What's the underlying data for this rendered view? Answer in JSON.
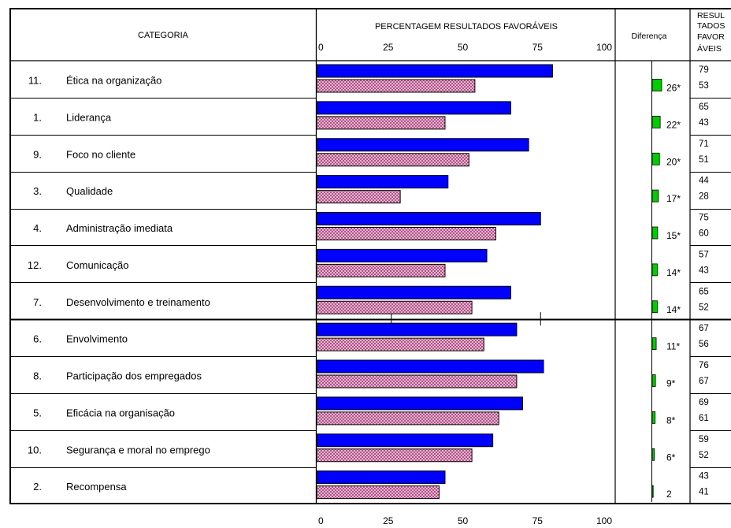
{
  "header": {
    "category": "CATEGORIA",
    "difference": "Diferença",
    "results_lines": [
      "RESUL",
      "TADOS",
      "FAVOR",
      "ÁVEIS"
    ]
  },
  "chart_data": {
    "type": "bar",
    "orientation": "horizontal",
    "title": "PERCENTAGEM RESULTADOS FAVORÁVEIS",
    "xlim": [
      0,
      100
    ],
    "x_ticks": [
      "0",
      "25",
      "50",
      "75",
      "100"
    ],
    "category_numbers": [
      "11.",
      "1.",
      "9.",
      "3.",
      "4.",
      "12.",
      "7.",
      "6.",
      "8.",
      "5.",
      "10.",
      "2."
    ],
    "categories": [
      "Ética na organização",
      "Liderança",
      "Foco no cliente",
      "Qualidade",
      "Administração imediata",
      "Comunicação",
      "Desenvolvimento e treinamento",
      "Envolvimento",
      "Participação dos empregados",
      "Eficácia na organisação",
      "Segurança e moral no emprego",
      "Recompensa"
    ],
    "series": [
      {
        "values": [
          79,
          65,
          71,
          44,
          75,
          57,
          65,
          67,
          76,
          69,
          59,
          43
        ],
        "color": "#0000ff",
        "fill": "solid"
      },
      {
        "values": [
          53,
          43,
          51,
          28,
          60,
          43,
          52,
          56,
          67,
          61,
          52,
          41
        ],
        "color": "#a8407a",
        "fill": "crosshatch"
      }
    ],
    "difference": {
      "values": [
        26,
        22,
        20,
        17,
        15,
        14,
        14,
        11,
        9,
        8,
        6,
        2
      ],
      "labels": [
        "26*",
        "22*",
        "20*",
        "17*",
        "15*",
        "14*",
        "14*",
        "11*",
        "9*",
        "8*",
        "6*",
        "2"
      ],
      "color": "#00cc00"
    }
  }
}
